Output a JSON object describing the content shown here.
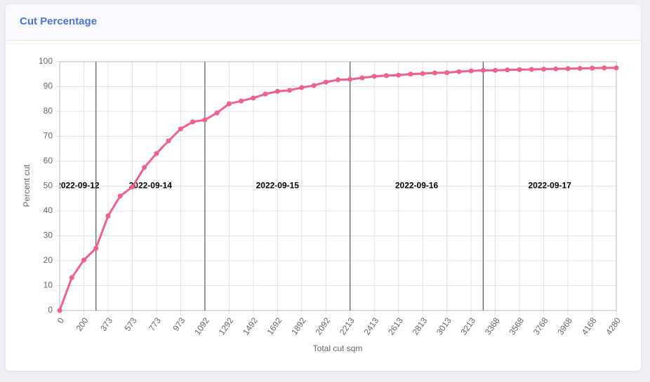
{
  "chart_data": {
    "type": "line",
    "title": "Cut Percentage",
    "x_label": "Total cut sqm",
    "y_label": "Percent cut",
    "categories": [
      "0",
      null,
      "200",
      null,
      "373",
      null,
      "573",
      null,
      "773",
      null,
      "973",
      null,
      "1092",
      null,
      "1292",
      null,
      "1492",
      null,
      "1692",
      null,
      "1892",
      null,
      "2092",
      null,
      "2213",
      null,
      "2413",
      null,
      "2613",
      null,
      "2813",
      null,
      "3013",
      null,
      "3213",
      null,
      "3368",
      null,
      "3568",
      null,
      "3768",
      null,
      "3968",
      null,
      "4168",
      null,
      "4280"
    ],
    "series": [
      {
        "name": "Percent cut",
        "color": "#f06088",
        "values": [
          0,
          13.2,
          20.3,
          25,
          38,
          46,
          49.6,
          57.5,
          63.1,
          68.2,
          73,
          75.8,
          76.6,
          79.4,
          83.1,
          84.2,
          85.4,
          87,
          88.1,
          88.5,
          89.6,
          90.4,
          91.8,
          92.7,
          92.9,
          93.5,
          94.1,
          94.4,
          94.6,
          95,
          95.2,
          95.5,
          95.6,
          96,
          96.3,
          96.5,
          96.5,
          96.7,
          96.8,
          96.9,
          97,
          97.1,
          97.2,
          97.3,
          97.4,
          97.5,
          97.5
        ]
      }
    ],
    "ylim": [
      0,
      100
    ],
    "yticks": [
      0,
      10,
      20,
      30,
      40,
      50,
      60,
      70,
      80,
      90,
      100
    ],
    "grid": true,
    "annotations": [
      {
        "label": "2022-09-12",
        "start": 0,
        "end": 3,
        "y": 50
      },
      {
        "label": "2022-09-14",
        "start": 3,
        "end": 12,
        "y": 50
      },
      {
        "label": "2022-09-15",
        "start": 12,
        "end": 24,
        "y": 50
      },
      {
        "label": "2022-09-16",
        "start": 24,
        "end": 35,
        "y": 50
      },
      {
        "label": "2022-09-17",
        "start": 35,
        "end": 46,
        "y": 50
      }
    ]
  }
}
